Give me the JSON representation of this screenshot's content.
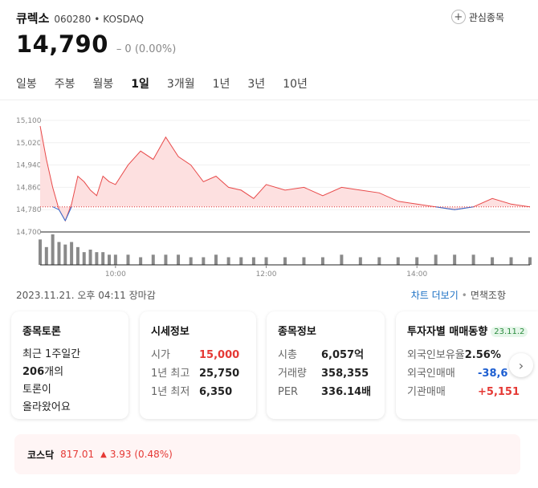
{
  "stock": {
    "name": "큐렉소",
    "code": "060280",
    "separator": "•",
    "market": "KOSDAQ",
    "price": "14,790",
    "change_symbol": "–",
    "change": "0 (0.00%)",
    "watchlist_label": "관심종목"
  },
  "tabs": [
    "일봉",
    "주봉",
    "월봉",
    "1일",
    "3개월",
    "1년",
    "3년",
    "10년"
  ],
  "active_tab": "1일",
  "chart_data": {
    "type": "area",
    "ylim": [
      14700,
      15100
    ],
    "y_ticks": [
      "15,100",
      "15,020",
      "14,940",
      "14,860",
      "14,780",
      "14,700"
    ],
    "x_ticks": [
      "10:00",
      "12:00",
      "14:00"
    ],
    "baseline": 14790,
    "colors": {
      "up_fill": "#fde0e0",
      "up_line": "#e84a4a",
      "down_line": "#2f6fd6",
      "volume": "#8a8a8a"
    },
    "series": [
      {
        "x": [
          "09:00",
          "09:05",
          "09:10",
          "09:15",
          "09:20",
          "09:25",
          "09:30",
          "09:35",
          "09:40",
          "09:45",
          "09:50",
          "09:55",
          "10:00",
          "10:10",
          "10:20",
          "10:30",
          "10:40",
          "10:50",
          "11:00",
          "11:10",
          "11:20",
          "11:30",
          "11:40",
          "11:50",
          "12:00",
          "12:15",
          "12:30",
          "12:45",
          "13:00",
          "13:15",
          "13:30",
          "13:45",
          "14:00",
          "14:15",
          "14:30",
          "14:45",
          "15:00",
          "15:15",
          "15:30"
        ],
        "values": [
          15080,
          14960,
          14860,
          14780,
          14740,
          14800,
          14900,
          14880,
          14850,
          14830,
          14900,
          14880,
          14870,
          14940,
          14990,
          14960,
          15040,
          14970,
          14940,
          14880,
          14900,
          14860,
          14850,
          14820,
          14870,
          14850,
          14860,
          14830,
          14860,
          14850,
          14840,
          14810,
          14800,
          14790,
          14780,
          14790,
          14820,
          14800,
          14790
        ]
      }
    ],
    "volume": [
      10,
      7,
      12,
      9,
      8,
      9,
      7,
      5,
      6,
      5,
      5,
      4,
      4,
      4,
      3,
      4,
      4,
      4,
      3,
      3,
      4,
      3,
      3,
      3,
      3,
      3,
      3,
      3,
      4,
      3,
      3,
      3,
      3,
      4,
      4,
      4,
      3,
      3,
      3
    ]
  },
  "timestamp": "2023.11.21. 오후 04:11 장마감",
  "links": {
    "more_chart": "차트 더보기",
    "separator": "•",
    "disclaimer": "면책조항"
  },
  "cards": {
    "discussion": {
      "title": "종목토론",
      "line1": "최근 1주일간",
      "count": "206",
      "line2_suffix": "개의",
      "line3": "토론이",
      "line4": "올라왔어요"
    },
    "price_info": {
      "title": "시세정보",
      "rows": [
        {
          "k": "시가",
          "v": "15,000"
        },
        {
          "k": "1년 최고",
          "v": "25,750"
        },
        {
          "k": "1년 최저",
          "v": "6,350"
        }
      ]
    },
    "stock_info": {
      "title": "종목정보",
      "rows": [
        {
          "k": "시총",
          "v": "6,057억"
        },
        {
          "k": "거래량",
          "v": "358,355"
        },
        {
          "k": "PER",
          "v": "336.14배"
        }
      ]
    },
    "investor": {
      "title": "투자자별 매매동향",
      "badge": "23.11.2",
      "rows": [
        {
          "k": "외국인보유율",
          "v": "2.56%"
        },
        {
          "k": "외국인매매",
          "v": "-38,6"
        },
        {
          "k": "기관매매",
          "v": "+5,151"
        }
      ]
    }
  },
  "kosdaq": {
    "label": "코스닥",
    "value": "817.01",
    "arrow": "▲",
    "change": "3.93 (0.48%)"
  }
}
